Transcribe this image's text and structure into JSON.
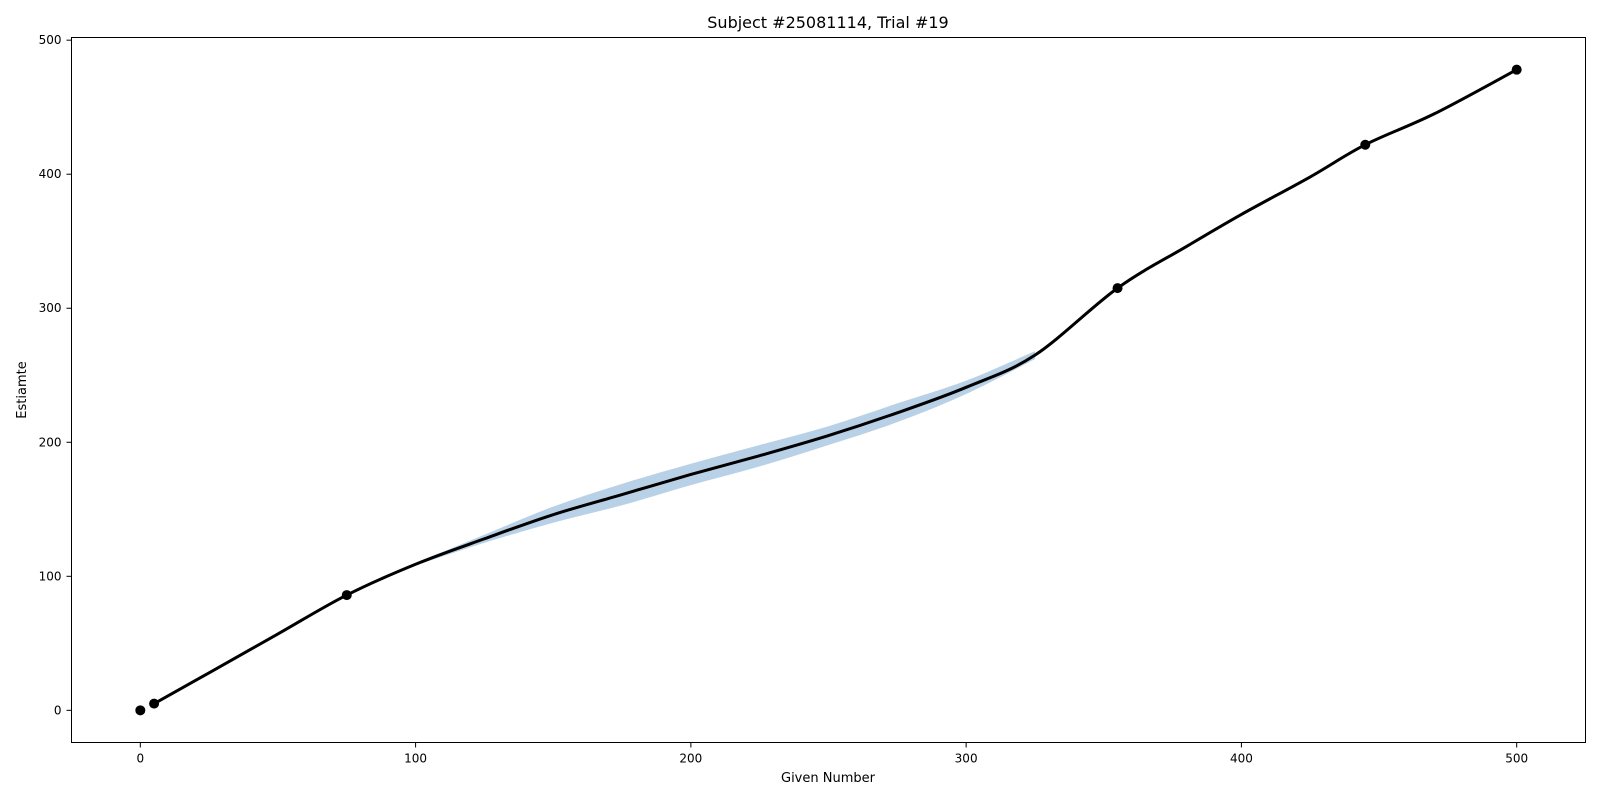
{
  "chart_data": {
    "type": "line",
    "title": "Subject #25081114, Trial #19",
    "xlabel": "Given Number",
    "ylabel": "Estiamte",
    "xlim": [
      -25,
      525
    ],
    "ylim": [
      -24,
      502
    ],
    "xticks": [
      0,
      100,
      200,
      300,
      400,
      500
    ],
    "yticks": [
      0,
      100,
      200,
      300,
      400,
      500
    ],
    "grid": false,
    "band_color": "#b8d1e6",
    "line_color": "#000000",
    "points": {
      "x": [
        0,
        5,
        75,
        355,
        445,
        500
      ],
      "y": [
        0,
        5,
        86,
        315,
        422,
        478
      ]
    },
    "fit_curve": {
      "x": [
        5,
        25,
        50,
        75,
        100,
        125,
        150,
        175,
        200,
        225,
        250,
        275,
        300,
        325,
        355,
        380,
        400,
        425,
        445,
        470,
        500
      ],
      "y": [
        5,
        28,
        57,
        86,
        109,
        128,
        146,
        161,
        176,
        190,
        205,
        222,
        241,
        265,
        315,
        346,
        370,
        398,
        422,
        445,
        478
      ]
    },
    "confidence_band": {
      "x": [
        100,
        125,
        150,
        175,
        200,
        225,
        250,
        275,
        300,
        325
      ],
      "upper": [
        110,
        131,
        152,
        169,
        184,
        198,
        212,
        229,
        246,
        268
      ],
      "lower": [
        108,
        125,
        140,
        153,
        168,
        182,
        198,
        215,
        236,
        262
      ]
    }
  }
}
